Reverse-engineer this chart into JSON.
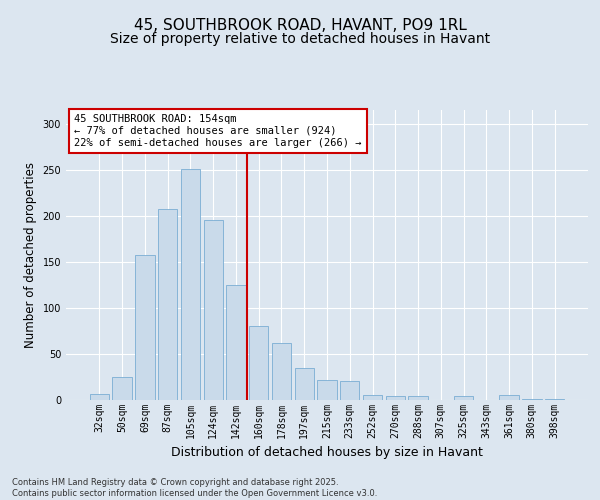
{
  "title1": "45, SOUTHBROOK ROAD, HAVANT, PO9 1RL",
  "title2": "Size of property relative to detached houses in Havant",
  "xlabel": "Distribution of detached houses by size in Havant",
  "ylabel": "Number of detached properties",
  "categories": [
    "32sqm",
    "50sqm",
    "69sqm",
    "87sqm",
    "105sqm",
    "124sqm",
    "142sqm",
    "160sqm",
    "178sqm",
    "197sqm",
    "215sqm",
    "233sqm",
    "252sqm",
    "270sqm",
    "288sqm",
    "307sqm",
    "325sqm",
    "343sqm",
    "361sqm",
    "380sqm",
    "398sqm"
  ],
  "values": [
    6,
    25,
    157,
    207,
    251,
    196,
    125,
    80,
    62,
    35,
    22,
    21,
    5,
    4,
    4,
    0,
    4,
    0,
    5,
    1,
    1
  ],
  "bar_color": "#c9daea",
  "bar_edge_color": "#7aadd4",
  "vline_color": "#cc0000",
  "vline_pos": 6.5,
  "annotation_line1": "45 SOUTHBROOK ROAD: 154sqm",
  "annotation_line2": "← 77% of detached houses are smaller (924)",
  "annotation_line3": "22% of semi-detached houses are larger (266) →",
  "annotation_box_facecolor": "#ffffff",
  "annotation_box_edgecolor": "#cc0000",
  "ylim": [
    0,
    315
  ],
  "yticks": [
    0,
    50,
    100,
    150,
    200,
    250,
    300
  ],
  "background_color": "#dce6f0",
  "grid_color": "#ffffff",
  "footer_line1": "Contains HM Land Registry data © Crown copyright and database right 2025.",
  "footer_line2": "Contains public sector information licensed under the Open Government Licence v3.0.",
  "title1_fontsize": 11,
  "title2_fontsize": 10,
  "tick_fontsize": 7,
  "ylabel_fontsize": 8.5,
  "xlabel_fontsize": 9,
  "annotation_fontsize": 7.5,
  "footer_fontsize": 6
}
